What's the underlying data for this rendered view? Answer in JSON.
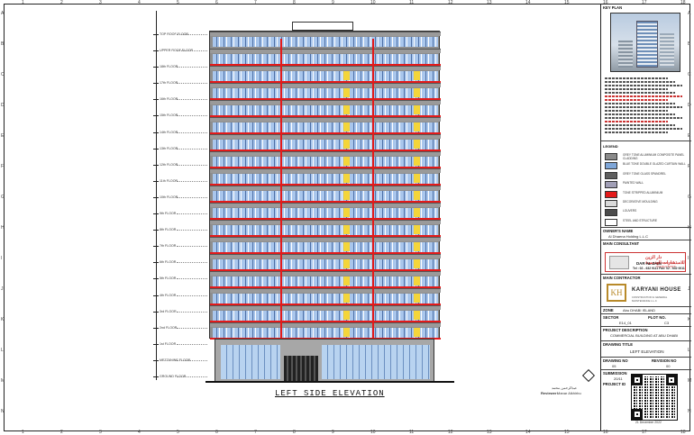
{
  "rulers": {
    "top": [
      "1",
      "2",
      "3",
      "4",
      "5",
      "6",
      "7",
      "8",
      "9",
      "10",
      "11",
      "12",
      "13",
      "14",
      "15",
      "16",
      "17",
      "18"
    ],
    "left": [
      "A",
      "B",
      "C",
      "D",
      "E",
      "F",
      "G",
      "H",
      "I",
      "J",
      "K",
      "L",
      "M",
      "N"
    ]
  },
  "levels": [
    {
      "label": "TOP ROOF FLOOR"
    },
    {
      "label": "UPPER ROOF FLOOR"
    },
    {
      "label": "18th FLOOR"
    },
    {
      "label": "17th FLOOR"
    },
    {
      "label": "16th FLOOR"
    },
    {
      "label": "15th FLOOR"
    },
    {
      "label": "14th FLOOR"
    },
    {
      "label": "13th FLOOR"
    },
    {
      "label": "12th FLOOR"
    },
    {
      "label": "11th FLOOR"
    },
    {
      "label": "10th FLOOR"
    },
    {
      "label": "9th FLOOR"
    },
    {
      "label": "8th FLOOR"
    },
    {
      "label": "7th FLOOR"
    },
    {
      "label": "6th FLOOR"
    },
    {
      "label": "5th FLOOR"
    },
    {
      "label": "4th FLOOR"
    },
    {
      "label": "3rd FLOOR"
    },
    {
      "label": "2nd FLOOR"
    },
    {
      "label": "1st FLOOR"
    },
    {
      "label": "MEZZANINE FLOOR"
    },
    {
      "label": "GROUND FLOOR"
    }
  ],
  "drawing": {
    "title": "LEFT SIDE ELEVATION"
  },
  "review": {
    "arabic": "عبدالرحمن محمد",
    "label": "Reviewer:",
    "name": "Manar Alkhirbu"
  },
  "title_block": {
    "key_plan": "KEY PLAN",
    "legend_title": "LEGEND",
    "legend": [
      {
        "text": "GREY TONE ALUMINIUM COMPOSITE PANEL CLADDING",
        "color": "#8a8a8a"
      },
      {
        "text": "BLUE TONE DOUBLE GLAZED CURTAIN WALL",
        "color": "#7ea6d8"
      },
      {
        "text": "GREY TONE GLASS SPANDREL",
        "color": "#5f5f5f"
      },
      {
        "text": "PAINTED WALL",
        "color": "#a19fb6"
      },
      {
        "text": "TONE STRIPPED ALUMINIUM",
        "color": "#e41a1a"
      },
      {
        "text": "DECORATIVE MOULDING",
        "color": "#d9d9d9"
      },
      {
        "text": "LOUVERS",
        "color": "#4c4c4c"
      },
      {
        "text": "STEEL AND STRUCTURE",
        "color": "#ffffff"
      }
    ],
    "owner_label": "OWNER'S NAME",
    "owner_value": "Al Dhaena Holding L.L.C",
    "consultant_label": "MAIN CONSULTANT",
    "consultant_arabic": "دار الزين للاستشارات الهندسية",
    "consultant_en": "DAR AL ZAIN",
    "consultant_en_sub": "ENGINEERING CONSULTANTS",
    "consultant_phone": "Tel : 02 - 632 9111    Fax: 02 - 632 0011",
    "contractor_label": "MAIN CONTRACTOR",
    "contractor_mark": "KH",
    "contractor_name": "KARYANI HOUSE",
    "contractor_sub": "CONSTRUCTION & GENERAL MAINTENANCE L.L.C",
    "zone_label": "ZONE",
    "zone_value": "Abu DHABI ISLAND",
    "sector_label": "SECTOR",
    "plot_label": "PLOT NO.",
    "sector_value": "E14_01",
    "plot_value": "C3",
    "project_desc_label": "PROJECT DESCRIPTION",
    "project_desc_value": "COMMERCIAL BUILDING AT ABU DHABI",
    "drawing_title_label": "DRAWING TITLE",
    "drawing_title_value": "LEFT  ELEVATION",
    "drawing_no_label": "DRAWING NO",
    "revision_label": "REVISION NO",
    "drawing_no_value": "05",
    "revision_value": "00",
    "submission_label": "SUBMISSION",
    "submission_value": "20/11",
    "project_id_label": "PROJECT ID",
    "date_value": "21 December 2022"
  }
}
